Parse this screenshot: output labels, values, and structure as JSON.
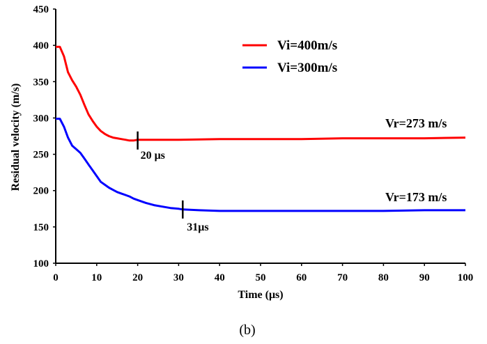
{
  "chart_data": {
    "type": "line",
    "xlabel": "Time (μs)",
    "ylabel": "Residual velocity (m/s)",
    "xlim": [
      0,
      100
    ],
    "ylim": [
      100,
      450
    ],
    "x_ticks": [
      "0",
      "10",
      "20",
      "30",
      "40",
      "50",
      "60",
      "70",
      "80",
      "90",
      "100"
    ],
    "y_ticks": [
      "100",
      "150",
      "200",
      "250",
      "300",
      "350",
      "400",
      "450"
    ],
    "grid": false,
    "legend_position": "top-right",
    "series": [
      {
        "name": "Vi=400m/s",
        "color": "#ff0000",
        "x": [
          0,
          1,
          2,
          3,
          4,
          5,
          6,
          7,
          8,
          9,
          10,
          11,
          12,
          13,
          14,
          15,
          16,
          17,
          18,
          19,
          20,
          25,
          30,
          40,
          50,
          60,
          70,
          80,
          90,
          100
        ],
        "y": [
          398,
          398,
          385,
          363,
          352,
          343,
          332,
          318,
          305,
          296,
          288,
          282,
          278,
          275,
          273,
          272,
          271,
          270,
          269,
          269,
          270,
          270,
          270,
          271,
          271,
          271,
          272,
          272,
          272,
          273
        ]
      },
      {
        "name": "Vi=300m/s",
        "color": "#0000ff",
        "x": [
          0,
          1,
          2,
          3,
          4,
          5,
          6,
          7,
          8,
          9,
          10,
          11,
          12,
          13,
          14,
          15,
          16,
          17,
          18,
          19,
          20,
          22,
          24,
          26,
          28,
          30,
          31,
          35,
          40,
          45,
          50,
          60,
          70,
          80,
          90,
          100
        ],
        "y": [
          299,
          299,
          288,
          273,
          262,
          257,
          252,
          244,
          236,
          228,
          220,
          212,
          208,
          204,
          201,
          198,
          196,
          194,
          192,
          189,
          187,
          183,
          180,
          178,
          176,
          175,
          174,
          173,
          172,
          172,
          172,
          172,
          172,
          172,
          173,
          173
        ]
      }
    ],
    "annotations": [
      {
        "text": "Vr=273 m/s",
        "series": "Vi=400m/s"
      },
      {
        "text": "Vr=173 m/s",
        "series": "Vi=300m/s"
      },
      {
        "text": "20 μs",
        "x": 20,
        "y": 269
      },
      {
        "text": "31μs",
        "x": 31,
        "y": 174
      }
    ],
    "caption": "(b)"
  }
}
